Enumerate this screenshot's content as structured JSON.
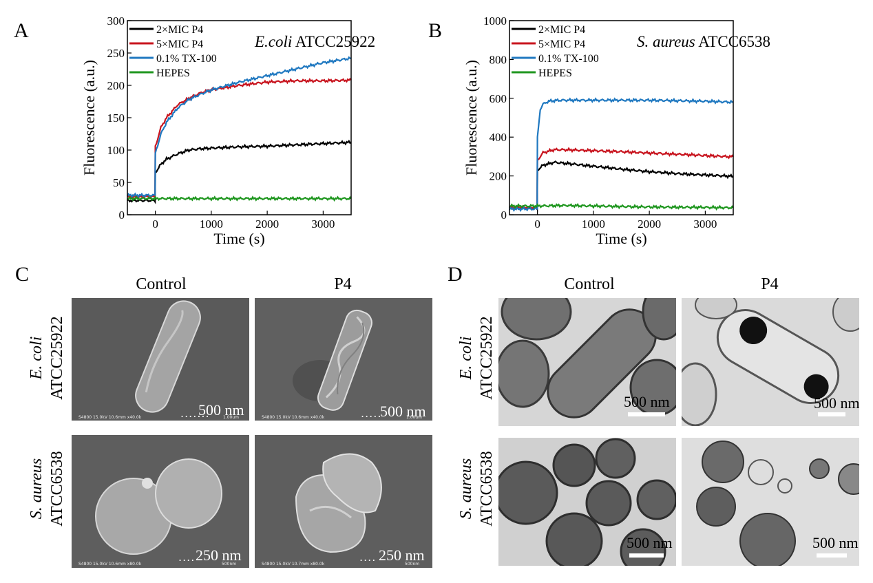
{
  "panels": {
    "a": {
      "letter": "A"
    },
    "b": {
      "letter": "B"
    },
    "c": {
      "letter": "C",
      "col1": "Control",
      "col2": "P4"
    },
    "d": {
      "letter": "D",
      "col1": "Control",
      "col2": "P4"
    }
  },
  "rows": {
    "ecoli": {
      "species": "E. coli",
      "strain": "ATCC25922"
    },
    "saureus": {
      "species": "S. aureus",
      "strain": "ATCC6538"
    }
  },
  "sem": {
    "ecoli_control": {
      "scale": "500 nm",
      "info": "S4800 15.0kV 10.6mm x40.0k",
      "info_scale": "1.00um"
    },
    "ecoli_p4": {
      "scale": "500 nm",
      "info": "S4800 15.0kV 10.6mm x40.0k",
      "info_scale": "1.00um"
    },
    "saureus_control": {
      "scale": "250 nm",
      "info": "S4800 15.0kV 10.6mm x80.0k",
      "info_scale": "500nm"
    },
    "saureus_p4": {
      "scale": "250 nm",
      "info": "S4800 15.0kV 10.7mm x80.0k",
      "info_scale": "500nm"
    }
  },
  "tem": {
    "ecoli_control": {
      "scale": "500 nm"
    },
    "ecoli_p4": {
      "scale": "500 nm"
    },
    "saureus_control": {
      "scale": "500 nm"
    },
    "saureus_p4": {
      "scale": "500 nm"
    }
  },
  "colors": {
    "black": "#000000",
    "red": "#c8141e",
    "blue": "#1f78c0",
    "green": "#1e961e"
  },
  "chart_data": [
    {
      "type": "line",
      "panel": "A",
      "title_italic": "E.coli",
      "title_plain": " ATCC25922",
      "xlabel": "Time (s)",
      "ylabel": "Fluorescence (a.u.)",
      "xlim": [
        -500,
        3500
      ],
      "ylim": [
        0,
        300
      ],
      "xticks": [
        0,
        1000,
        2000,
        3000
      ],
      "yticks": [
        0,
        50,
        100,
        150,
        200,
        250,
        300
      ],
      "legend_position": "top-left",
      "series": [
        {
          "name": "2×MIC P4",
          "color": "#000000",
          "x": [
            -500,
            -5,
            0,
            100,
            200,
            400,
            600,
            800,
            1000,
            1500,
            2000,
            2500,
            3000,
            3500
          ],
          "y": [
            22,
            22,
            65,
            78,
            86,
            94,
            100,
            102,
            103,
            105,
            106,
            108,
            110,
            112
          ]
        },
        {
          "name": "5×MIC P4",
          "color": "#c8141e",
          "x": [
            -500,
            -5,
            0,
            100,
            200,
            400,
            600,
            800,
            1000,
            1500,
            2000,
            2500,
            3000,
            3500
          ],
          "y": [
            28,
            28,
            105,
            135,
            150,
            170,
            180,
            188,
            193,
            200,
            205,
            207,
            207,
            208
          ]
        },
        {
          "name": "0.1% TX-100",
          "color": "#1f78c0",
          "x": [
            -500,
            -5,
            0,
            100,
            200,
            400,
            600,
            800,
            1000,
            1500,
            2000,
            2500,
            3000,
            3500
          ],
          "y": [
            30,
            30,
            95,
            125,
            143,
            165,
            178,
            186,
            193,
            205,
            215,
            225,
            235,
            242
          ]
        },
        {
          "name": "HEPES",
          "color": "#1e961e",
          "x": [
            -500,
            0,
            1000,
            2000,
            3000,
            3500
          ],
          "y": [
            25,
            25,
            25,
            25,
            25,
            25
          ]
        }
      ]
    },
    {
      "type": "line",
      "panel": "B",
      "title_italic": "S. aureus",
      "title_plain": " ATCC6538",
      "xlabel": "Time (s)",
      "ylabel": "Fluorescence (a.u.)",
      "xlim": [
        -500,
        3500
      ],
      "ylim": [
        0,
        1000
      ],
      "xticks": [
        0,
        1000,
        2000,
        3000
      ],
      "yticks": [
        0,
        200,
        400,
        600,
        800,
        1000
      ],
      "legend_position": "top-left",
      "series": [
        {
          "name": "2×MIC P4",
          "color": "#000000",
          "x": [
            -500,
            -5,
            0,
            100,
            300,
            500,
            1000,
            1500,
            2000,
            2500,
            3000,
            3500
          ],
          "y": [
            35,
            35,
            230,
            255,
            270,
            265,
            250,
            235,
            222,
            212,
            205,
            198
          ]
        },
        {
          "name": "5×MIC P4",
          "color": "#c8141e",
          "x": [
            -500,
            -5,
            0,
            100,
            300,
            500,
            1000,
            1500,
            2000,
            2500,
            3000,
            3500
          ],
          "y": [
            38,
            38,
            280,
            320,
            335,
            335,
            330,
            325,
            318,
            312,
            305,
            298
          ]
        },
        {
          "name": "0.1% TX-100",
          "color": "#1f78c0",
          "x": [
            -500,
            -5,
            0,
            50,
            100,
            200,
            400,
            1000,
            2000,
            3000,
            3500
          ],
          "y": [
            30,
            30,
            400,
            540,
            570,
            585,
            590,
            590,
            590,
            585,
            580
          ]
        },
        {
          "name": "HEPES",
          "color": "#1e961e",
          "x": [
            -500,
            0,
            500,
            1000,
            2000,
            3000,
            3500
          ],
          "y": [
            45,
            45,
            48,
            45,
            40,
            38,
            36
          ]
        }
      ]
    }
  ]
}
